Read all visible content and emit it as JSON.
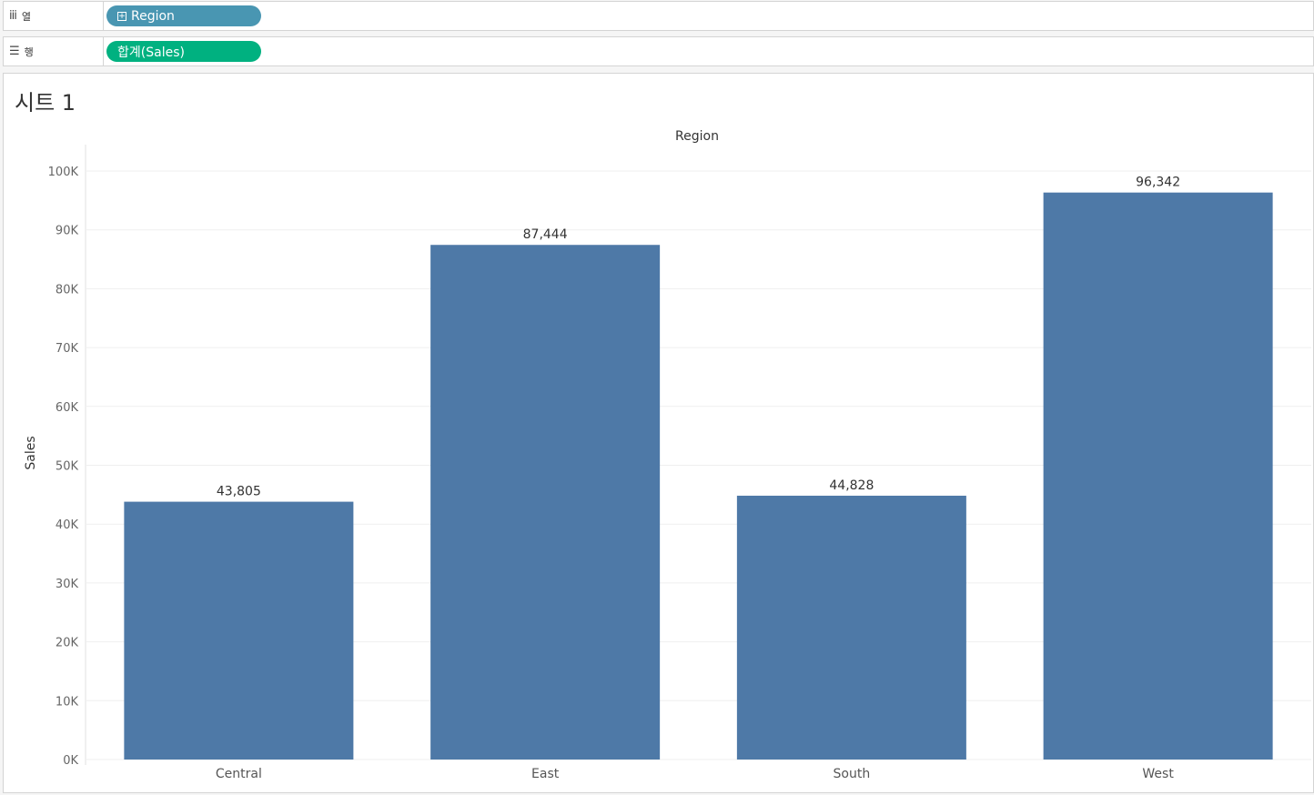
{
  "shelves": {
    "columns": {
      "icon": "columns-icon",
      "label": "열",
      "pill": "Region",
      "pill_color": "#4996b2"
    },
    "rows": {
      "icon": "rows-icon",
      "label": "행",
      "pill": "합계(Sales)",
      "pill_color": "#00b180"
    }
  },
  "sheet": {
    "title": "시트 1"
  },
  "chart_data": {
    "type": "bar",
    "title": "",
    "column_header": "Region",
    "xlabel": "",
    "ylabel": "Sales",
    "categories": [
      "Central",
      "East",
      "South",
      "West"
    ],
    "values": [
      43805,
      87444,
      44828,
      96342
    ],
    "value_labels": [
      "43,805",
      "87,444",
      "44,828",
      "96,342"
    ],
    "ylim": [
      0,
      100000
    ],
    "yticks": [
      {
        "value": 0,
        "label": "0K"
      },
      {
        "value": 10000,
        "label": "10K"
      },
      {
        "value": 20000,
        "label": "20K"
      },
      {
        "value": 30000,
        "label": "30K"
      },
      {
        "value": 40000,
        "label": "40K"
      },
      {
        "value": 50000,
        "label": "50K"
      },
      {
        "value": 60000,
        "label": "60K"
      },
      {
        "value": 70000,
        "label": "70K"
      },
      {
        "value": 80000,
        "label": "80K"
      },
      {
        "value": 90000,
        "label": "90K"
      },
      {
        "value": 100000,
        "label": "100K"
      }
    ],
    "grid": true,
    "bar_color": "#4e79a7"
  }
}
